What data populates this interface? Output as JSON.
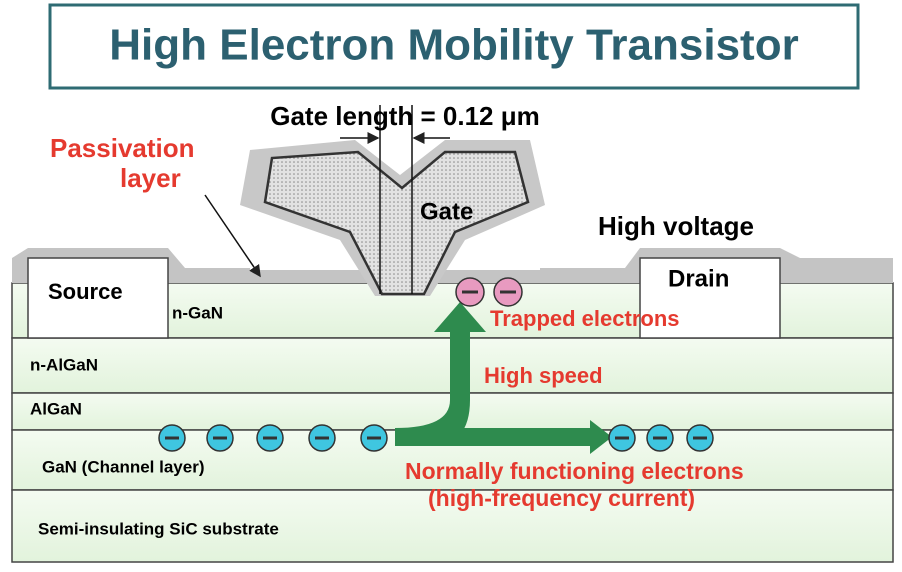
{
  "title": "High Electron Mobility Transistor",
  "gate_length": "Gate length = 0.12 μm",
  "passivation": [
    "Passivation",
    "layer"
  ],
  "gate": "Gate",
  "high_voltage": "High voltage",
  "source": "Source",
  "drain": "Drain",
  "layers": [
    "n-GaN",
    "n-AlGaN",
    "AlGaN",
    "GaN (Channel layer)",
    "Semi-insulating SiC substrate"
  ],
  "trapped": "Trapped electrons",
  "high_speed": "High speed",
  "normal": [
    "Normally functioning electrons",
    "(high-frequency current)"
  ]
}
